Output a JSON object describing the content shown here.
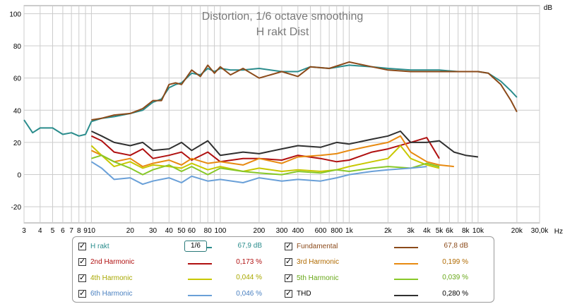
{
  "chart_data": {
    "type": "line",
    "title": "Distortion, 1/6 octave smoothing",
    "subtitle": "H rakt Dist",
    "ylabel": "dB",
    "xlabel": "Hz",
    "xscale": "log",
    "xlim": [
      3,
      30000
    ],
    "ylim": [
      -30,
      105
    ],
    "grid": true,
    "yticks": [
      100,
      80,
      60,
      40,
      20,
      0,
      -20
    ],
    "xticks": [
      {
        "v": 3,
        "l": "3"
      },
      {
        "v": 4,
        "l": "4"
      },
      {
        "v": 5,
        "l": "5"
      },
      {
        "v": 6,
        "l": "6"
      },
      {
        "v": 7,
        "l": "7"
      },
      {
        "v": 8,
        "l": "8"
      },
      {
        "v": 9,
        "l": "9"
      },
      {
        "v": 10,
        "l": "10"
      },
      {
        "v": 20,
        "l": "20"
      },
      {
        "v": 30,
        "l": "30"
      },
      {
        "v": 40,
        "l": "40"
      },
      {
        "v": 50,
        "l": "50"
      },
      {
        "v": 60,
        "l": "60"
      },
      {
        "v": 80,
        "l": "80"
      },
      {
        "v": 100,
        "l": "100"
      },
      {
        "v": 200,
        "l": "200"
      },
      {
        "v": 300,
        "l": "300"
      },
      {
        "v": 400,
        "l": "400"
      },
      {
        "v": 600,
        "l": "600"
      },
      {
        "v": 800,
        "l": "800"
      },
      {
        "v": 1000,
        "l": "1k"
      },
      {
        "v": 2000,
        "l": "2k"
      },
      {
        "v": 3000,
        "l": "3k"
      },
      {
        "v": 4000,
        "l": "4k"
      },
      {
        "v": 5000,
        "l": "5k"
      },
      {
        "v": 6000,
        "l": "6k"
      },
      {
        "v": 8000,
        "l": "8k"
      },
      {
        "v": 10000,
        "l": "10k"
      },
      {
        "v": 20000,
        "l": "20k"
      },
      {
        "v": 30000,
        "l": "30,0k"
      }
    ],
    "series": [
      {
        "name": "H rakt",
        "color": "#2a8c8c",
        "x": [
          3,
          3.5,
          4,
          5,
          6,
          7,
          8,
          9,
          10,
          12,
          15,
          20,
          25,
          30,
          35,
          40,
          45,
          50,
          60,
          70,
          80,
          90,
          100,
          120,
          150,
          200,
          300,
          400,
          500,
          700,
          1000,
          1500,
          2000,
          3000,
          5000,
          7000,
          10000,
          12000,
          15000,
          18000,
          20000
        ],
        "y": [
          34,
          26,
          29,
          29,
          25,
          26,
          24,
          25,
          33,
          35,
          36,
          38,
          40,
          45,
          47,
          54,
          56,
          57,
          63,
          62,
          66,
          64,
          66,
          65,
          65,
          66,
          64,
          64,
          67,
          66,
          68,
          67,
          66,
          65,
          65,
          64,
          64,
          63,
          58,
          52,
          48
        ]
      },
      {
        "name": "Fundamental",
        "color": "#8b4a1a",
        "x": [
          10,
          12,
          15,
          20,
          25,
          30,
          35,
          40,
          45,
          50,
          60,
          70,
          80,
          90,
          100,
          120,
          150,
          200,
          300,
          400,
          500,
          700,
          1000,
          1500,
          2000,
          3000,
          5000,
          7000,
          10000,
          12000,
          15000,
          18000,
          20000
        ],
        "y": [
          34,
          35,
          37,
          38,
          41,
          46,
          46,
          56,
          57,
          56,
          65,
          61,
          68,
          63,
          67,
          62,
          66,
          60,
          64,
          61,
          67,
          66,
          70,
          67,
          65,
          64,
          64,
          64,
          64,
          63,
          56,
          46,
          39
        ]
      },
      {
        "name": "2nd Harmonic",
        "color": "#b01010",
        "x": [
          10,
          12,
          15,
          20,
          25,
          30,
          40,
          50,
          60,
          80,
          100,
          150,
          200,
          300,
          400,
          600,
          800,
          1000,
          1500,
          2000,
          3000,
          4000,
          5000
        ],
        "y": [
          24,
          21,
          14,
          12,
          16,
          10,
          12,
          14,
          9,
          14,
          8,
          10,
          10,
          9,
          12,
          10,
          8,
          9,
          14,
          16,
          20,
          23,
          10
        ]
      },
      {
        "name": "3rd Harmonic",
        "color": "#e88a10",
        "x": [
          10,
          12,
          15,
          20,
          25,
          30,
          40,
          50,
          60,
          80,
          100,
          150,
          200,
          300,
          400,
          600,
          800,
          1000,
          1500,
          2000,
          2500,
          3000,
          4000,
          5000,
          6500
        ],
        "y": [
          15,
          12,
          8,
          10,
          5,
          7,
          9,
          6,
          10,
          7,
          8,
          6,
          10,
          7,
          11,
          12,
          13,
          15,
          18,
          20,
          24,
          14,
          8,
          6,
          5
        ]
      },
      {
        "name": "4th Harmonic",
        "color": "#c8c800",
        "x": [
          10,
          12,
          15,
          20,
          25,
          30,
          40,
          50,
          60,
          80,
          100,
          150,
          200,
          300,
          400,
          600,
          800,
          1000,
          1500,
          2000,
          2500,
          3000,
          4000,
          5000
        ],
        "y": [
          18,
          12,
          5,
          8,
          4,
          6,
          5,
          4,
          7,
          3,
          5,
          2,
          4,
          2,
          3,
          2,
          3,
          5,
          8,
          10,
          18,
          10,
          6,
          4
        ]
      },
      {
        "name": "5th Harmonic",
        "color": "#88c828",
        "x": [
          10,
          12,
          15,
          20,
          25,
          30,
          40,
          50,
          60,
          80,
          100,
          150,
          200,
          300,
          400,
          600,
          800,
          1000,
          1500,
          2000,
          3000,
          4000,
          5000
        ],
        "y": [
          10,
          12,
          8,
          4,
          0,
          3,
          6,
          2,
          5,
          0,
          4,
          2,
          1,
          0,
          2,
          1,
          3,
          2,
          4,
          5,
          4,
          7,
          5
        ]
      },
      {
        "name": "6th Harmonic",
        "color": "#6aa0d8",
        "x": [
          10,
          12,
          15,
          20,
          25,
          30,
          40,
          50,
          60,
          80,
          100,
          150,
          200,
          300,
          400,
          600,
          800,
          1000,
          1500,
          2000,
          3000,
          4000
        ],
        "y": [
          8,
          4,
          -3,
          -2,
          -6,
          -4,
          -2,
          -5,
          -1,
          -4,
          -3,
          -5,
          -2,
          -4,
          -3,
          -4,
          -2,
          0,
          2,
          3,
          4,
          5
        ]
      },
      {
        "name": "THD",
        "color": "#303030",
        "x": [
          10,
          12,
          15,
          20,
          25,
          30,
          40,
          50,
          60,
          80,
          100,
          150,
          200,
          300,
          400,
          600,
          800,
          1000,
          1500,
          2000,
          2500,
          3000,
          4000,
          5000,
          6500,
          8000,
          10000
        ],
        "y": [
          27,
          24,
          20,
          18,
          20,
          15,
          16,
          20,
          15,
          21,
          12,
          14,
          13,
          16,
          18,
          17,
          20,
          19,
          22,
          24,
          27,
          20,
          20,
          21,
          14,
          12,
          11
        ]
      }
    ]
  },
  "legend": {
    "smoothing_label": "1/6",
    "items": [
      {
        "name": "H rakt",
        "value": "67,9 dB",
        "color": "#2a8c8c",
        "label_color": "#2a8c8c"
      },
      {
        "name": "Fundamental",
        "value": "67,8 dB",
        "color": "#8b4a1a",
        "label_color": "#8b4a1a"
      },
      {
        "name": "2nd Harmonic",
        "value": "0,173 %",
        "color": "#b01010",
        "label_color": "#b01010"
      },
      {
        "name": "3rd Harmonic",
        "value": "0,199 %",
        "color": "#e88a10",
        "label_color": "#b06a00"
      },
      {
        "name": "4th Harmonic",
        "value": "0,044 %",
        "color": "#c8c800",
        "label_color": "#a8a800"
      },
      {
        "name": "5th Harmonic",
        "value": "0,039 %",
        "color": "#88c828",
        "label_color": "#68a818"
      },
      {
        "name": "6th Harmonic",
        "value": "0,046 %",
        "color": "#6aa0d8",
        "label_color": "#4a80c0"
      },
      {
        "name": "THD",
        "value": "0,280 %",
        "color": "#303030",
        "label_color": "#000000"
      }
    ]
  }
}
